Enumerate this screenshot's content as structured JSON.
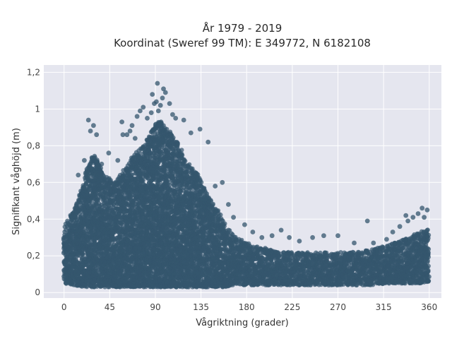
{
  "chart_data": {
    "type": "scatter",
    "title": "År 1979 - 2019",
    "subtitle": "Koordinat (Sweref 99 TM): E 349772, N 6182108",
    "xlabel": "Vågriktning (grader)",
    "ylabel": "Signifikant våghöjd (m)",
    "xlim": [
      -20,
      372
    ],
    "ylim": [
      -0.03,
      1.24
    ],
    "x_ticks": [
      0,
      45,
      90,
      135,
      180,
      225,
      270,
      315,
      360
    ],
    "x_tick_labels": [
      "0",
      "45",
      "90",
      "135",
      "180",
      "225",
      "270",
      "315",
      "360"
    ],
    "y_ticks": [
      0,
      0.2,
      0.4,
      0.6,
      0.8,
      1.0,
      1.2
    ],
    "y_tick_labels": [
      "0",
      "0,2",
      "0,4",
      "0,6",
      "0,8",
      "1",
      "1,2"
    ],
    "grid": true,
    "legend": "none",
    "marker_color": "#34566d",
    "plot_background": "#e5e6ef",
    "envelope": {
      "direction_deg": [
        0,
        10,
        20,
        25,
        30,
        40,
        50,
        60,
        70,
        80,
        90,
        95,
        100,
        110,
        120,
        130,
        140,
        150,
        160,
        170,
        180,
        190,
        200,
        210,
        220,
        240,
        260,
        280,
        300,
        320,
        340,
        350,
        360
      ],
      "min_height_m": [
        0.05,
        0.04,
        0.03,
        0.03,
        0.03,
        0.03,
        0.03,
        0.03,
        0.03,
        0.03,
        0.03,
        0.03,
        0.03,
        0.03,
        0.03,
        0.03,
        0.03,
        0.03,
        0.03,
        0.04,
        0.04,
        0.04,
        0.04,
        0.04,
        0.04,
        0.04,
        0.04,
        0.04,
        0.04,
        0.05,
        0.05,
        0.05,
        0.06
      ],
      "max_height_m": [
        0.36,
        0.46,
        0.62,
        0.72,
        0.76,
        0.64,
        0.6,
        0.68,
        0.76,
        0.82,
        0.92,
        0.94,
        0.9,
        0.84,
        0.72,
        0.66,
        0.55,
        0.46,
        0.36,
        0.3,
        0.27,
        0.25,
        0.24,
        0.22,
        0.22,
        0.22,
        0.22,
        0.22,
        0.23,
        0.26,
        0.3,
        0.33,
        0.35
      ]
    },
    "outliers": [
      {
        "x": 14,
        "y": 0.64
      },
      {
        "x": 20,
        "y": 0.72
      },
      {
        "x": 24,
        "y": 0.94
      },
      {
        "x": 26,
        "y": 0.88
      },
      {
        "x": 29,
        "y": 0.91
      },
      {
        "x": 32,
        "y": 0.86
      },
      {
        "x": 37,
        "y": 0.7
      },
      {
        "x": 44,
        "y": 0.76
      },
      {
        "x": 53,
        "y": 0.72
      },
      {
        "x": 57,
        "y": 0.93
      },
      {
        "x": 58,
        "y": 0.86
      },
      {
        "x": 62,
        "y": 0.86
      },
      {
        "x": 65,
        "y": 0.88
      },
      {
        "x": 67,
        "y": 0.91
      },
      {
        "x": 70,
        "y": 0.84
      },
      {
        "x": 72,
        "y": 0.96
      },
      {
        "x": 75,
        "y": 0.99
      },
      {
        "x": 78,
        "y": 1.01
      },
      {
        "x": 82,
        "y": 0.95
      },
      {
        "x": 86,
        "y": 0.98
      },
      {
        "x": 87,
        "y": 1.08
      },
      {
        "x": 89,
        "y": 1.03
      },
      {
        "x": 91,
        "y": 1.04
      },
      {
        "x": 92,
        "y": 1.14
      },
      {
        "x": 93,
        "y": 0.99
      },
      {
        "x": 95,
        "y": 1.02
      },
      {
        "x": 97,
        "y": 1.06
      },
      {
        "x": 98,
        "y": 1.11
      },
      {
        "x": 100,
        "y": 1.09
      },
      {
        "x": 104,
        "y": 1.03
      },
      {
        "x": 107,
        "y": 0.97
      },
      {
        "x": 110,
        "y": 0.95
      },
      {
        "x": 118,
        "y": 0.94
      },
      {
        "x": 125,
        "y": 0.87
      },
      {
        "x": 134,
        "y": 0.89
      },
      {
        "x": 142,
        "y": 0.82
      },
      {
        "x": 149,
        "y": 0.58
      },
      {
        "x": 156,
        "y": 0.6
      },
      {
        "x": 162,
        "y": 0.48
      },
      {
        "x": 167,
        "y": 0.41
      },
      {
        "x": 178,
        "y": 0.37
      },
      {
        "x": 186,
        "y": 0.33
      },
      {
        "x": 195,
        "y": 0.3
      },
      {
        "x": 205,
        "y": 0.31
      },
      {
        "x": 214,
        "y": 0.34
      },
      {
        "x": 222,
        "y": 0.3
      },
      {
        "x": 232,
        "y": 0.28
      },
      {
        "x": 245,
        "y": 0.3
      },
      {
        "x": 256,
        "y": 0.31
      },
      {
        "x": 270,
        "y": 0.31
      },
      {
        "x": 286,
        "y": 0.27
      },
      {
        "x": 299,
        "y": 0.39
      },
      {
        "x": 305,
        "y": 0.27
      },
      {
        "x": 318,
        "y": 0.29
      },
      {
        "x": 324,
        "y": 0.33
      },
      {
        "x": 331,
        "y": 0.36
      },
      {
        "x": 337,
        "y": 0.42
      },
      {
        "x": 339,
        "y": 0.39
      },
      {
        "x": 344,
        "y": 0.41
      },
      {
        "x": 349,
        "y": 0.43
      },
      {
        "x": 353,
        "y": 0.46
      },
      {
        "x": 355,
        "y": 0.41
      },
      {
        "x": 358,
        "y": 0.45
      }
    ]
  }
}
